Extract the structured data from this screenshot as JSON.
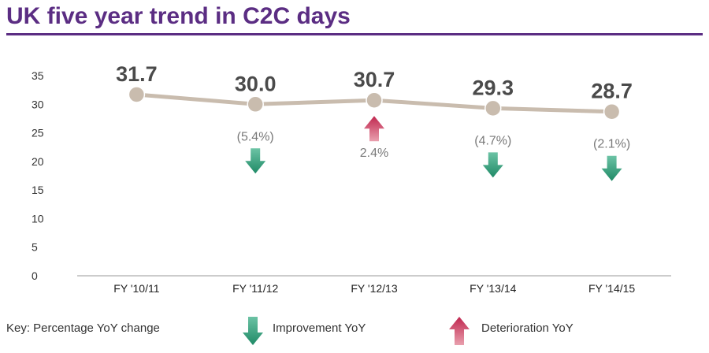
{
  "page": {
    "title": "UK five year trend in C2C days"
  },
  "chart_data": {
    "type": "line",
    "categories": [
      "FY '10/11",
      "FY '11/12",
      "FY '12/13",
      "FY '13/14",
      "FY '14/15"
    ],
    "values": [
      31.7,
      30.0,
      30.7,
      29.3,
      28.7
    ],
    "value_labels": [
      "31.7",
      "30.0",
      "30.7",
      "29.3",
      "28.7"
    ],
    "yoy_change_labels": [
      "",
      "(5.4%)",
      "2.4%",
      "(4.7%)",
      "(2.1%)"
    ],
    "yoy_direction": [
      "none",
      "improvement",
      "deterioration",
      "improvement",
      "improvement"
    ],
    "ylim": [
      0,
      35
    ],
    "yticks": [
      0,
      5,
      10,
      15,
      20,
      25,
      30,
      35
    ],
    "title": "UK five year trend in C2C days",
    "xlabel": "",
    "ylabel": "",
    "grid": false,
    "colors": {
      "line": "#c9bcae",
      "improvement": "#2e9e7a",
      "deterioration": "#d0506e",
      "title": "#5b2d83"
    }
  },
  "key": {
    "label": "Key: Percentage YoY change",
    "improvement_label": "Improvement YoY",
    "deterioration_label": "Deterioration YoY"
  }
}
